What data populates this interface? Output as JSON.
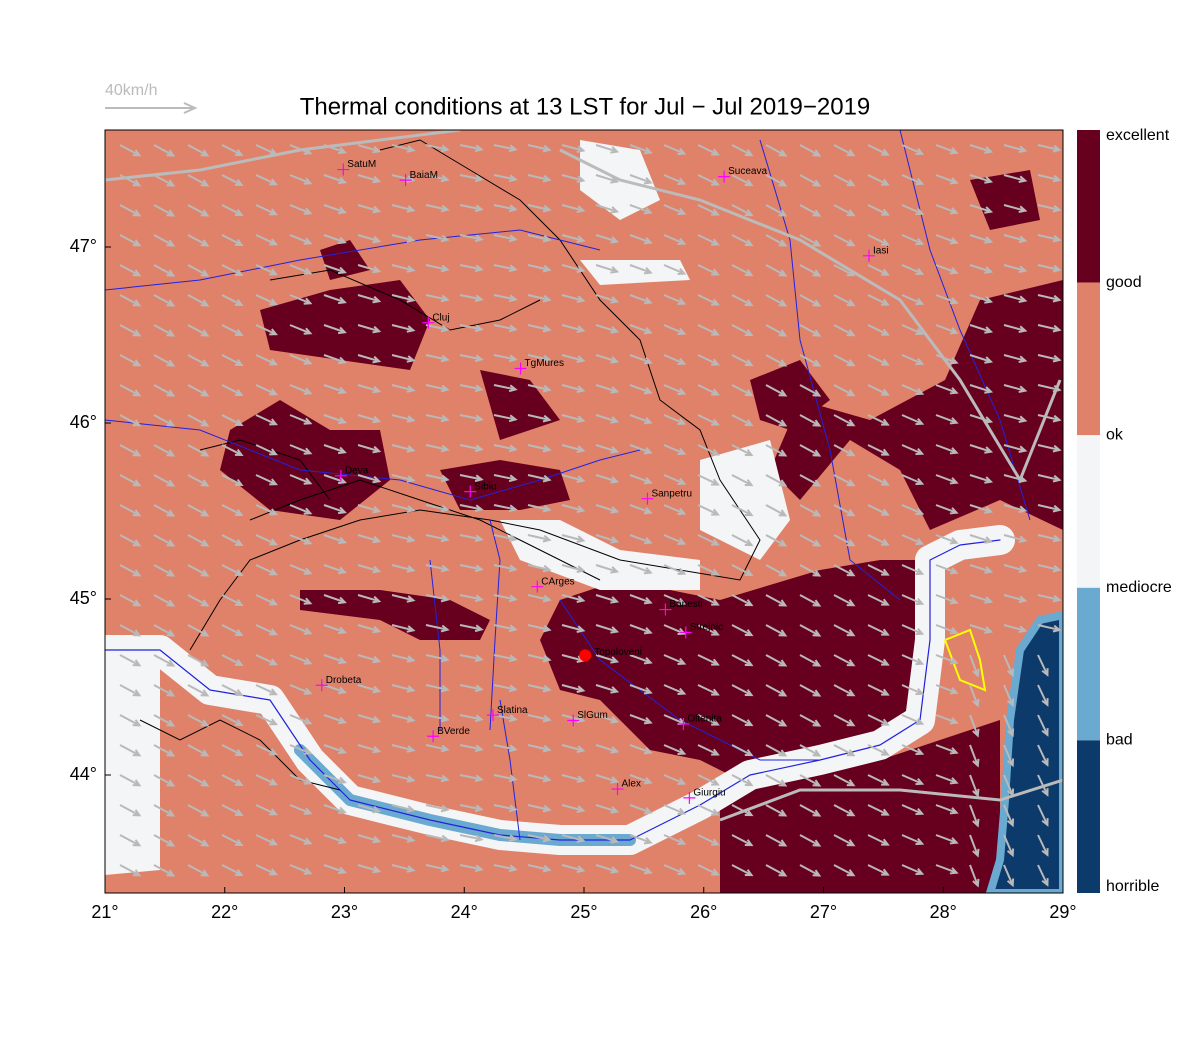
{
  "title": "Thermal conditions at 13 LST for Jul − Jul  2019−2019",
  "wind_legend": "40km/h",
  "lon_ticks": [
    {
      "value": 21,
      "label": "21°"
    },
    {
      "value": 22,
      "label": "22°"
    },
    {
      "value": 23,
      "label": "23°"
    },
    {
      "value": 24,
      "label": "24°"
    },
    {
      "value": 25,
      "label": "25°"
    },
    {
      "value": 26,
      "label": "26°"
    },
    {
      "value": 27,
      "label": "27°"
    },
    {
      "value": 28,
      "label": "28°"
    },
    {
      "value": 29,
      "label": "29°"
    }
  ],
  "lat_ticks": [
    {
      "value": 44,
      "label": "44°"
    },
    {
      "value": 45,
      "label": "45°"
    },
    {
      "value": 46,
      "label": "46°"
    },
    {
      "value": 47,
      "label": "47°"
    }
  ],
  "colorbar": {
    "labels": [
      "excellent",
      "good",
      "ok",
      "mediocre",
      "bad",
      "horrible"
    ],
    "colors": [
      "#67001f",
      "#e0826a",
      "#f4f5f7",
      "#6aa9d0",
      "#0c3a6b"
    ]
  },
  "cities": [
    {
      "name": "SatuM",
      "lon": 22.99,
      "lat": 47.44
    },
    {
      "name": "BaiaM",
      "lon": 23.51,
      "lat": 47.38
    },
    {
      "name": "Suceava",
      "lon": 26.17,
      "lat": 47.4
    },
    {
      "name": "Iasi",
      "lon": 27.38,
      "lat": 46.95
    },
    {
      "name": "Cluj",
      "lon": 23.7,
      "lat": 46.57
    },
    {
      "name": "TgMures",
      "lon": 24.47,
      "lat": 46.31
    },
    {
      "name": "Deva",
      "lon": 22.97,
      "lat": 45.7
    },
    {
      "name": "Sibiu",
      "lon": 24.05,
      "lat": 45.61
    },
    {
      "name": "Sanpetru",
      "lon": 25.53,
      "lat": 45.57
    },
    {
      "name": "CArges",
      "lon": 24.61,
      "lat": 45.07
    },
    {
      "name": "Banesti",
      "lon": 25.68,
      "lat": 44.94
    },
    {
      "name": "Strejnic",
      "lon": 25.85,
      "lat": 44.81
    },
    {
      "name": "Drobeta",
      "lon": 22.81,
      "lat": 44.51
    },
    {
      "name": "Slatina",
      "lon": 24.24,
      "lat": 44.34
    },
    {
      "name": "SlGum",
      "lon": 24.91,
      "lat": 44.31
    },
    {
      "name": "Oltenita",
      "lon": 25.83,
      "lat": 44.29
    },
    {
      "name": "BVerde",
      "lon": 23.74,
      "lat": 44.22
    },
    {
      "name": "Alex",
      "lon": 25.28,
      "lat": 43.92
    },
    {
      "name": "Giurgiu",
      "lon": 25.88,
      "lat": 43.87
    }
  ],
  "site": {
    "name": "Topoloveni",
    "lon": 25.01,
    "lat": 44.68
  }
}
